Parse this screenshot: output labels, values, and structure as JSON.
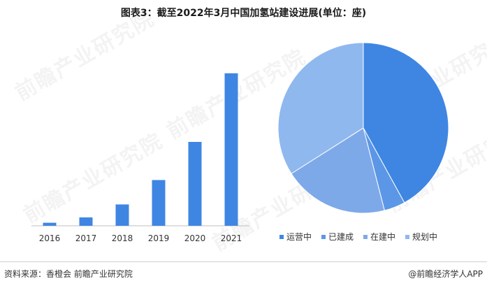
{
  "title": "图表3：截至2022年3月中国加氢站建设进展(单位：座)",
  "watermark_text": "前瞻产业研究院",
  "chart_data": [
    {
      "type": "bar",
      "categories": [
        "2016",
        "2017",
        "2018",
        "2019",
        "2020",
        "2021"
      ],
      "values": [
        4,
        11,
        28,
        60,
        110,
        200
      ],
      "ylim": [
        0,
        220
      ],
      "grid": false,
      "color": "#3f86e3"
    },
    {
      "type": "pie",
      "labels": [
        "运营中",
        "已建成",
        "在建中",
        "规划中"
      ],
      "values": [
        42,
        4,
        20,
        34
      ],
      "colors": [
        "#3f86e3",
        "#5b97e6",
        "#7ea9e9",
        "#8fb8ef"
      ],
      "legend": "bottom"
    }
  ],
  "footer": {
    "source": "资料来源：香橙会 前瞻产业研究院",
    "brand": "@前瞻经济学人APP"
  }
}
